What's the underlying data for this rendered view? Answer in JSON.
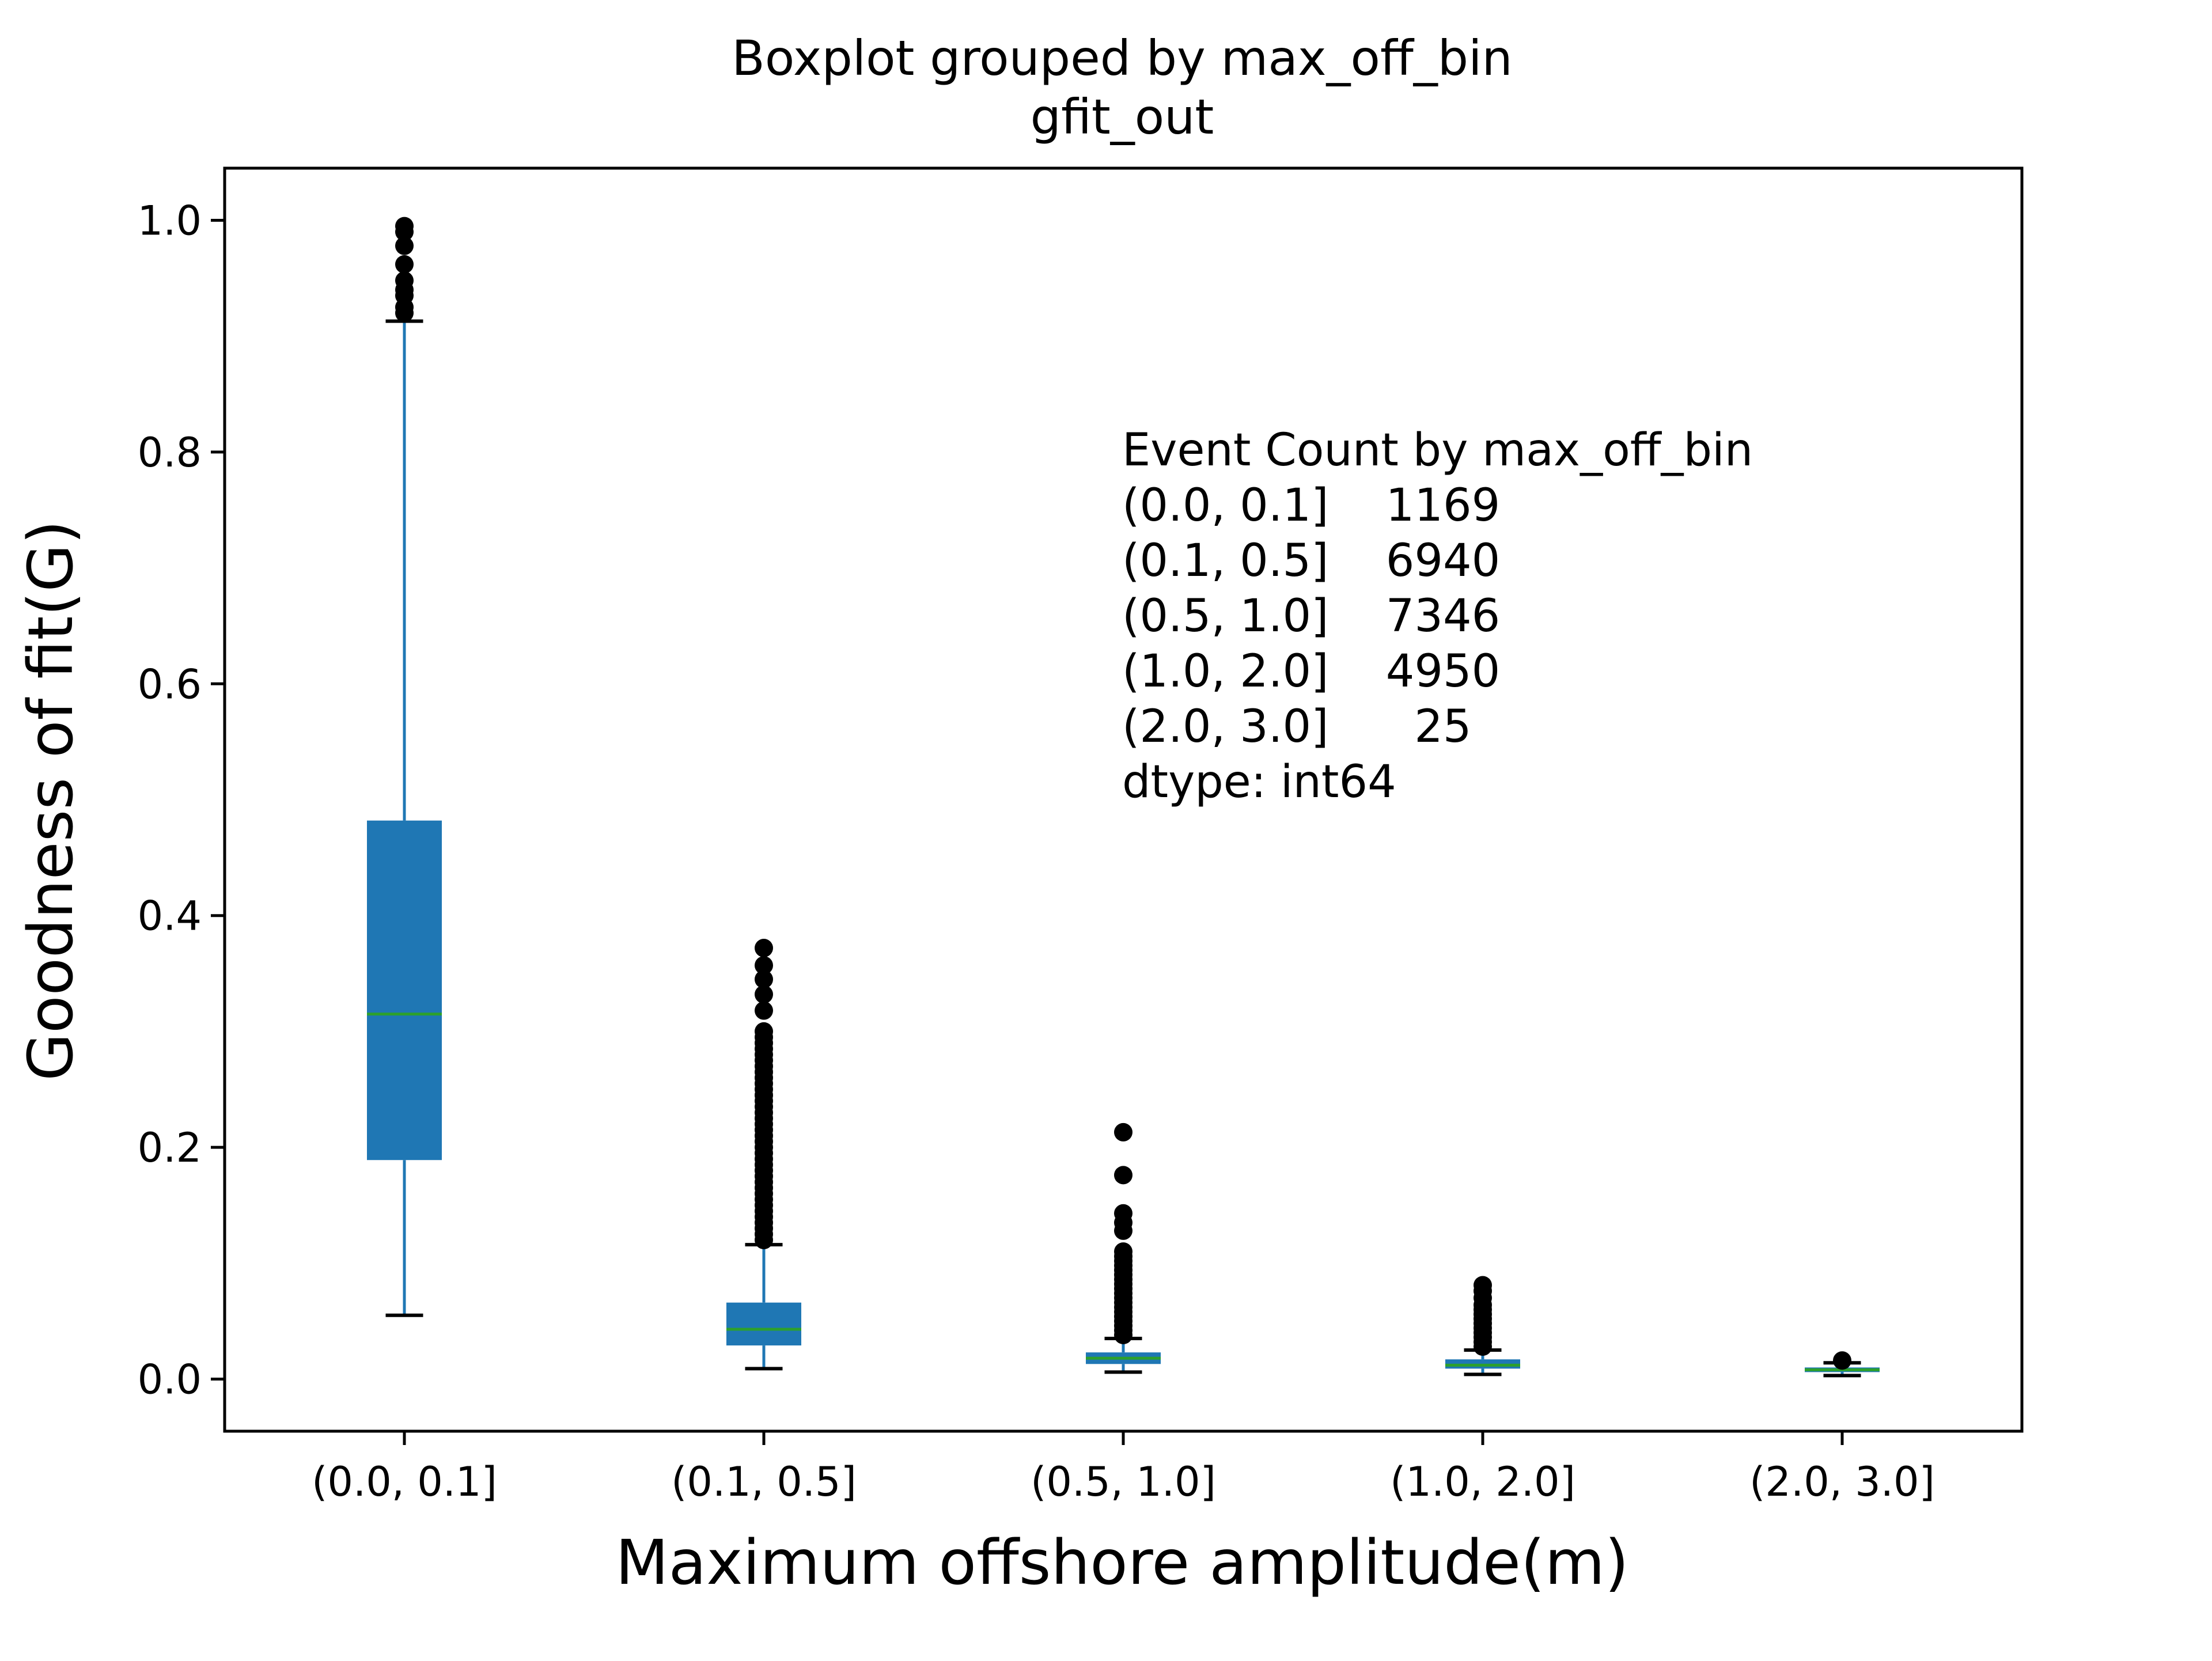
{
  "chart_data": {
    "type": "box",
    "title": "Boxplot grouped by max_off_bin",
    "subtitle": "gfit_out",
    "xlabel": "Maximum offshore amplitude(m)",
    "ylabel": "Goodness of fit(G)",
    "ylim": [
      -0.045,
      1.045
    ],
    "yticks": [
      "0.0",
      "0.2",
      "0.4",
      "0.6",
      "0.8",
      "1.0"
    ],
    "ytick_values": [
      0.0,
      0.2,
      0.4,
      0.6,
      0.8,
      1.0
    ],
    "categories": [
      "(0.0, 0.1]",
      "(0.1, 0.5]",
      "(0.5, 1.0]",
      "(1.0, 2.0]",
      "(2.0, 3.0]"
    ],
    "grid": false,
    "legend": "none",
    "colors": {
      "box": "#1f77b4",
      "median": "#2ca02c",
      "whisker_cap": "#000000",
      "outlier": "#000000",
      "axes": "#000000"
    },
    "boxes": [
      {
        "category": "(0.0, 0.1]",
        "whisker_low": 0.055,
        "q1": 0.189,
        "median": 0.315,
        "q3": 0.482,
        "whisker_high": 0.913,
        "outliers": [
          0.92,
          0.925,
          0.935,
          0.94,
          0.948,
          0.962,
          0.978,
          0.99,
          0.995
        ]
      },
      {
        "category": "(0.1, 0.5]",
        "whisker_low": 0.009,
        "q1": 0.029,
        "median": 0.043,
        "q3": 0.066,
        "whisker_high": 0.116,
        "outliers": [
          0.12,
          0.125,
          0.13,
          0.135,
          0.14,
          0.145,
          0.15,
          0.155,
          0.16,
          0.165,
          0.17,
          0.175,
          0.18,
          0.185,
          0.19,
          0.195,
          0.2,
          0.205,
          0.21,
          0.215,
          0.22,
          0.225,
          0.23,
          0.235,
          0.24,
          0.245,
          0.25,
          0.255,
          0.26,
          0.265,
          0.27,
          0.275,
          0.28,
          0.285,
          0.29,
          0.295,
          0.3,
          0.318,
          0.332,
          0.345,
          0.357,
          0.372
        ]
      },
      {
        "category": "(0.5, 1.0]",
        "whisker_low": 0.006,
        "q1": 0.013,
        "median": 0.018,
        "q3": 0.023,
        "whisker_high": 0.035,
        "outliers": [
          0.038,
          0.042,
          0.046,
          0.05,
          0.054,
          0.058,
          0.062,
          0.066,
          0.07,
          0.074,
          0.078,
          0.082,
          0.086,
          0.09,
          0.094,
          0.098,
          0.102,
          0.106,
          0.11,
          0.128,
          0.135,
          0.143,
          0.176,
          0.213
        ]
      },
      {
        "category": "(1.0, 2.0]",
        "whisker_low": 0.004,
        "q1": 0.009,
        "median": 0.012,
        "q3": 0.017,
        "whisker_high": 0.025,
        "outliers": [
          0.028,
          0.032,
          0.036,
          0.04,
          0.044,
          0.048,
          0.052,
          0.056,
          0.06,
          0.064,
          0.07,
          0.076,
          0.081
        ]
      },
      {
        "category": "(2.0, 3.0]",
        "whisker_low": 0.003,
        "q1": 0.006,
        "median": 0.008,
        "q3": 0.01,
        "whisker_high": 0.014,
        "outliers": [
          0.016
        ]
      }
    ],
    "annotation": {
      "lines": [
        "Event Count by max_off_bin",
        "(0.0, 0.1]    1169",
        "(0.1, 0.5]    6940",
        "(0.5, 1.0]    7346",
        "(1.0, 2.0]    4950",
        "(2.0, 3.0]      25",
        "dtype: int64"
      ]
    }
  }
}
